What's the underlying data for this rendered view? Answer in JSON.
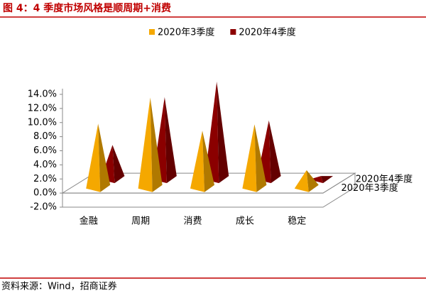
{
  "title": "图 4：4 季度市场风格是顺周期+消费",
  "source": "资料来源：Wind，招商证券",
  "chart_data": {
    "type": "pyramid3d",
    "categories": [
      "金融",
      "周期",
      "消费",
      "成长",
      "稳定"
    ],
    "series": [
      {
        "name": "2020年3季度",
        "color": "#f5a800",
        "values": [
          9.0,
          12.7,
          8.0,
          8.9,
          2.4
        ]
      },
      {
        "name": "2020年4季度",
        "color": "#8b0000",
        "values": [
          4.7,
          11.5,
          13.7,
          8.2,
          0.3
        ]
      }
    ],
    "ylim": [
      -2,
      14
    ],
    "yticks": [
      {
        "value": -2,
        "label": "-2.0%"
      },
      {
        "value": 0,
        "label": "0.0%"
      },
      {
        "value": 2,
        "label": "2.0%"
      },
      {
        "value": 4,
        "label": "4.0%"
      },
      {
        "value": 6,
        "label": "6.0%"
      },
      {
        "value": 8,
        "label": "8.0%"
      },
      {
        "value": 10,
        "label": "10.0%"
      },
      {
        "value": 12,
        "label": "12.0%"
      },
      {
        "value": 14,
        "label": "14.0%"
      }
    ]
  }
}
